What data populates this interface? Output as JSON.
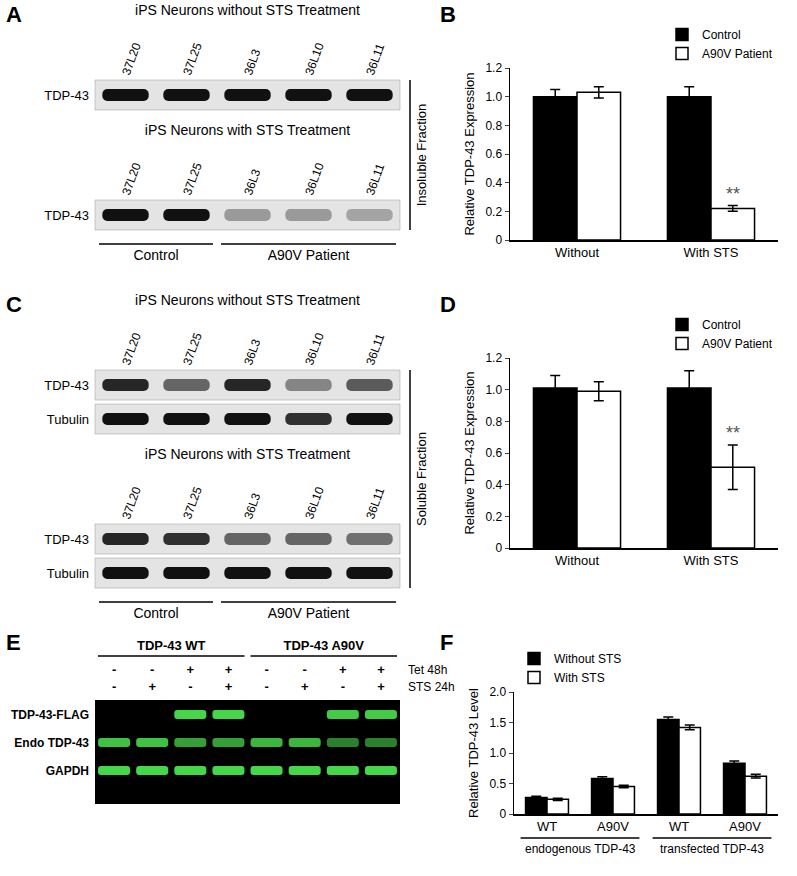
{
  "panel_labels": [
    "A",
    "B",
    "C",
    "D",
    "E",
    "F"
  ],
  "blots": [
    {
      "fraction": "Insoluble Fraction",
      "lanes": [
        "37L20",
        "37L25",
        "36L3",
        "36L10",
        "36L11"
      ],
      "groups": [
        {
          "label": "Control",
          "lanes": 2
        },
        {
          "label": "A90V Patient",
          "lanes": 3
        }
      ],
      "blocks": [
        {
          "title": "iPS Neurons without STS Treatment",
          "rows": [
            {
              "label": "TDP-43",
              "bands": [
                1,
                1,
                1,
                1,
                1
              ]
            }
          ]
        },
        {
          "title": "iPS Neurons with STS Treatment",
          "rows": [
            {
              "label": "TDP-43",
              "bands": [
                1,
                1,
                0.35,
                0.35,
                0.3
              ]
            }
          ]
        }
      ]
    },
    {
      "fraction": "Soluble Fraction",
      "lanes": [
        "37L20",
        "37L25",
        "36L3",
        "36L10",
        "36L11"
      ],
      "groups": [
        {
          "label": "Control",
          "lanes": 2
        },
        {
          "label": "A90V Patient",
          "lanes": 3
        }
      ],
      "blocks": [
        {
          "title": "iPS Neurons without STS Treatment",
          "rows": [
            {
              "label": "TDP-43",
              "bands": [
                0.9,
                0.6,
                0.9,
                0.45,
                0.65
              ]
            },
            {
              "label": "Tubulin",
              "bands": [
                1,
                1,
                1,
                0.85,
                1
              ]
            }
          ]
        },
        {
          "title": "iPS Neurons with STS Treatment",
          "rows": [
            {
              "label": "TDP-43",
              "bands": [
                0.9,
                0.85,
                0.6,
                0.6,
                0.55
              ]
            },
            {
              "label": "Tubulin",
              "bands": [
                1,
                1,
                1,
                1,
                1
              ]
            }
          ]
        }
      ]
    }
  ],
  "blot_e": {
    "groups": [
      {
        "label": "TDP-43 WT",
        "lanes": 4
      },
      {
        "label": "TDP-43 A90V",
        "lanes": 4
      }
    ],
    "conditions": [
      {
        "label": "Tet 48h",
        "signs": [
          "-",
          "-",
          "+",
          "+",
          "-",
          "-",
          "+",
          "+"
        ]
      },
      {
        "label": "STS 24h",
        "signs": [
          "-",
          "+",
          "-",
          "+",
          "-",
          "+",
          "-",
          "+"
        ]
      }
    ],
    "rows": [
      {
        "label": "TDP-43-FLAG",
        "bands": [
          0,
          0,
          1,
          1,
          0,
          0,
          0.95,
          0.95
        ]
      },
      {
        "label": "Endo TDP-43",
        "bands": [
          0.9,
          0.9,
          0.75,
          0.75,
          0.85,
          0.85,
          0.6,
          0.6
        ]
      },
      {
        "label": "GAPDH",
        "bands": [
          1,
          1,
          1,
          1,
          1,
          1,
          1,
          1
        ]
      }
    ]
  },
  "chart_data": [
    {
      "type": "bar",
      "y_label": "Relative TDP-43 Expression",
      "categories": [
        "Without",
        "With STS"
      ],
      "series": [
        {
          "name": "Control",
          "color": "#000000",
          "values": [
            1.0,
            1.0
          ],
          "errors": [
            0.05,
            0.07
          ]
        },
        {
          "name": "A90V Patient",
          "color": "#ffffff",
          "values": [
            1.03,
            0.22
          ],
          "errors": [
            0.04,
            0.02
          ]
        }
      ],
      "ylim": [
        0,
        1.2
      ],
      "yticks": [
        0,
        0.2,
        0.4,
        0.6,
        0.8,
        {
          "value": 1,
          "label": "1.0"
        },
        1.2
      ],
      "legend": "top right",
      "grid": false,
      "annotations": [
        {
          "text": "**",
          "category": "With STS",
          "series": "A90V Patient"
        }
      ]
    },
    {
      "type": "bar",
      "y_label": "Relative TDP-43 Expression",
      "categories": [
        "Without",
        "With STS"
      ],
      "series": [
        {
          "name": "Control",
          "color": "#000000",
          "values": [
            1.01,
            1.01
          ],
          "errors": [
            0.08,
            0.11
          ]
        },
        {
          "name": "A90V Patient",
          "color": "#ffffff",
          "values": [
            0.99,
            0.51
          ],
          "errors": [
            0.06,
            0.14
          ]
        }
      ],
      "ylim": [
        0,
        1.2
      ],
      "yticks": [
        0,
        0.2,
        0.4,
        0.6,
        0.8,
        {
          "value": 1,
          "label": "1.0"
        },
        1.2
      ],
      "legend": "top right",
      "grid": false,
      "annotations": [
        {
          "text": "**",
          "category": "With STS",
          "series": "A90V Patient"
        }
      ]
    },
    {
      "type": "bar",
      "y_label": "Relative TDP-43 Level",
      "categories": [
        "WT",
        "A90V",
        "WT",
        "A90V"
      ],
      "groups": [
        "endogenous TDP-43",
        "endogenous TDP-43",
        "transfected TDP-43",
        "transfected TDP-43"
      ],
      "series": [
        {
          "name": "Without STS",
          "color": "#000000",
          "values": [
            0.27,
            0.58,
            1.55,
            0.83
          ],
          "errors": [
            0.02,
            0.03,
            0.04,
            0.04
          ]
        },
        {
          "name": "With STS",
          "color": "#ffffff",
          "values": [
            0.24,
            0.45,
            1.42,
            0.62
          ],
          "errors": [
            0.02,
            0.02,
            0.04,
            0.03
          ]
        }
      ],
      "ylim": [
        0,
        2
      ],
      "yticks": [
        0,
        0.5,
        {
          "value": 1,
          "label": "1.0"
        },
        1.5,
        {
          "value": 2,
          "label": "2.0"
        }
      ],
      "legend": "top left",
      "grid": false
    }
  ]
}
